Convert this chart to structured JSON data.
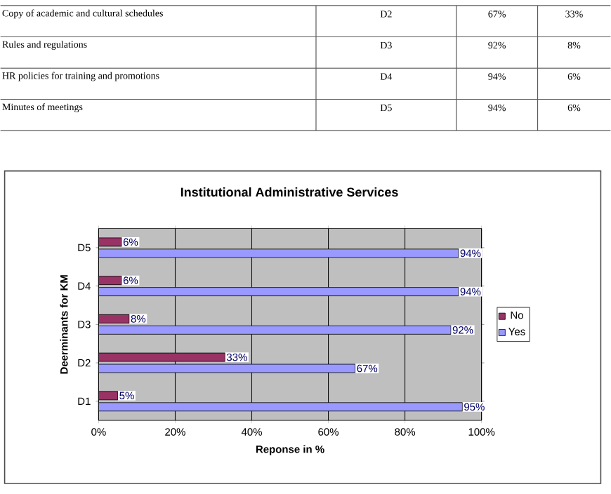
{
  "chart_data": {
    "type": "bar",
    "orientation": "horizontal",
    "title": "Institutional Administrative Services",
    "xlabel": "Reponse in %",
    "ylabel": "Deerminants for KM",
    "categories": [
      "D5",
      "D4",
      "D3",
      "D2",
      "D1"
    ],
    "series": [
      {
        "name": "No",
        "color": "#993366",
        "values": [
          6,
          6,
          8,
          33,
          5
        ],
        "value_labels": [
          "6%",
          "6%",
          "8%",
          "33%",
          "5%"
        ]
      },
      {
        "name": "Yes",
        "color": "#9999ff",
        "values": [
          94,
          94,
          92,
          67,
          95
        ],
        "value_labels": [
          "94%",
          "94%",
          "92%",
          "67%",
          "95%"
        ]
      }
    ],
    "xlim": [
      0,
      100
    ],
    "xticks": [
      {
        "value": 0,
        "label": "0%"
      },
      {
        "value": 20,
        "label": "20%"
      },
      {
        "value": 40,
        "label": "40%"
      },
      {
        "value": 60,
        "label": "60%"
      },
      {
        "value": 80,
        "label": "80%"
      },
      {
        "value": 100,
        "label": "100%"
      }
    ],
    "grid": "x",
    "legend": "right",
    "annotations": [
      "Copy of academic and cultural schedules",
      "D2",
      "67%",
      "33%",
      "Rules and regulations",
      "D3",
      "92%",
      "8%",
      "HR policies for training and  promotions",
      "D4",
      "94%",
      "6%",
      "Minutes of meetings",
      "D5",
      "94%",
      "6%"
    ]
  }
}
